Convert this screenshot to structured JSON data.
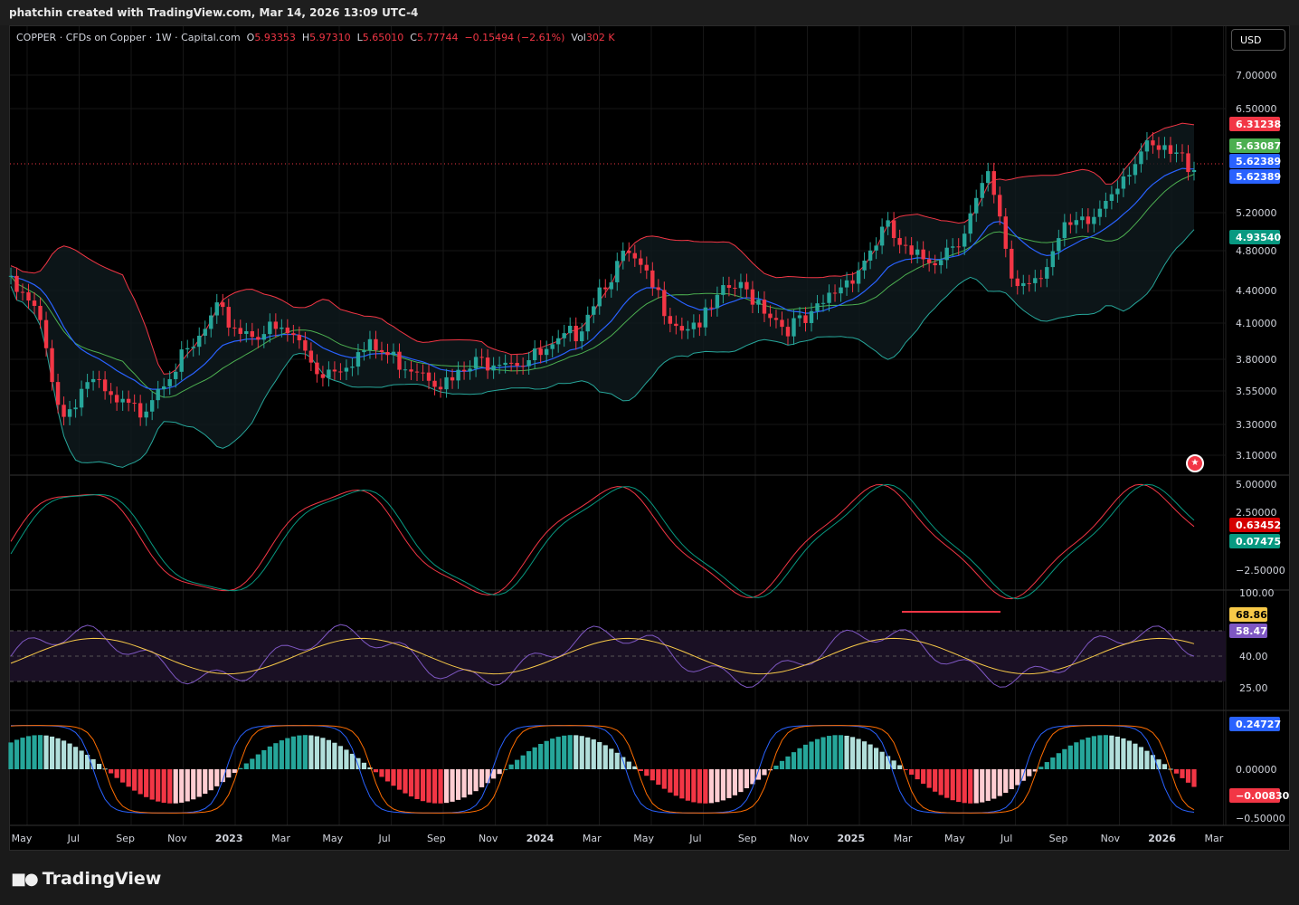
{
  "header": {
    "attribution": "phatchin created with TradingView.com, Mar 14, 2026 13:09 UTC-4"
  },
  "legend": {
    "symbol": "COPPER · CFDs on Copper · 1W · Capital.com",
    "o_label": "O",
    "o": "5.93353",
    "h_label": "H",
    "h": "5.97310",
    "l_label": "L",
    "l": "5.65010",
    "c_label": "C",
    "c": "5.77744",
    "change": "−0.15494 (−2.61%)",
    "vol_label": "Vol",
    "vol": "302 K"
  },
  "currency_button": "USD",
  "colors": {
    "up": "#26a69a",
    "down": "#f23645",
    "bb_upper": "#f23645",
    "bb_lower": "#26a69a",
    "ema": "#2962ff",
    "rsi": "#7e57c2",
    "rsi_ma": "#f7c948",
    "macd_line": "#2962ff",
    "signal_line": "#ff6d00"
  },
  "price_axis": {
    "ticks": [
      "7.00000",
      "6.50000",
      "5.20000",
      "4.80000",
      "4.40000",
      "4.10000",
      "3.80000",
      "3.55000",
      "3.30000",
      "3.10000"
    ]
  },
  "price_badges": [
    {
      "value": "6.31238",
      "color": "#f23645"
    },
    {
      "value": "5.63087",
      "color": "#4caf50"
    },
    {
      "value": "5.62389",
      "color": "#2962ff"
    },
    {
      "value": "5.62389",
      "color": "#2962ff"
    },
    {
      "value": "4.93540",
      "color": "#089981"
    }
  ],
  "osc_axis": {
    "ticks": [
      "5.00000",
      "2.50000",
      "−2.50000"
    ]
  },
  "osc_badges": [
    {
      "value": "0.63452",
      "color": "#d50000"
    },
    {
      "value": "0.07475",
      "color": "#089981"
    }
  ],
  "rsi_axis": {
    "ticks": [
      "100.00",
      "40.00",
      "25.00"
    ]
  },
  "rsi_badges": [
    {
      "value": "68.86",
      "color": "#f7c948"
    },
    {
      "value": "58.47",
      "color": "#7e57c2"
    }
  ],
  "macd_axis": {
    "ticks": [
      "0.00000",
      "−0.50000"
    ]
  },
  "macd_badges": [
    {
      "value": "0.24727",
      "color": "#2962ff"
    },
    {
      "value": "−0.00830",
      "color": "#f23645"
    }
  ],
  "time_axis": [
    "May",
    "Jul",
    "Sep",
    "Nov",
    "2023",
    "Mar",
    "May",
    "Jul",
    "Sep",
    "Nov",
    "2024",
    "Mar",
    "May",
    "Jul",
    "Sep",
    "Nov",
    "2025",
    "Mar",
    "May",
    "Jul",
    "Sep",
    "Nov",
    "2026",
    "Mar"
  ],
  "footer": {
    "brand": "TradingView"
  },
  "chart_data": {
    "type": "candlestick",
    "title": "COPPER · CFDs on Copper · 1W · Capital.com",
    "ylim": [
      2.9,
      7.3
    ],
    "y_scale": "log",
    "close_path": [
      {
        "date": "2022-05",
        "close": 4.45
      },
      {
        "date": "2022-06",
        "close": 4.2
      },
      {
        "date": "2022-07",
        "close": 3.35
      },
      {
        "date": "2022-08",
        "close": 3.65
      },
      {
        "date": "2022-09",
        "close": 3.45
      },
      {
        "date": "2022-10",
        "close": 3.4
      },
      {
        "date": "2022-11",
        "close": 3.7
      },
      {
        "date": "2022-12",
        "close": 3.85
      },
      {
        "date": "2023-01",
        "close": 4.2
      },
      {
        "date": "2023-02",
        "close": 4.05
      },
      {
        "date": "2023-03",
        "close": 4.05
      },
      {
        "date": "2023-04",
        "close": 4.0
      },
      {
        "date": "2023-05",
        "close": 3.7
      },
      {
        "date": "2023-06",
        "close": 3.8
      },
      {
        "date": "2023-07",
        "close": 3.9
      },
      {
        "date": "2023-08",
        "close": 3.8
      },
      {
        "date": "2023-09",
        "close": 3.75
      },
      {
        "date": "2023-10",
        "close": 3.6
      },
      {
        "date": "2023-11",
        "close": 3.75
      },
      {
        "date": "2023-12",
        "close": 3.85
      },
      {
        "date": "2024-01",
        "close": 3.8
      },
      {
        "date": "2024-02",
        "close": 3.85
      },
      {
        "date": "2024-03",
        "close": 4.05
      },
      {
        "date": "2024-04",
        "close": 4.5
      },
      {
        "date": "2024-05",
        "close": 4.75
      },
      {
        "date": "2024-06",
        "close": 4.4
      },
      {
        "date": "2024-07",
        "close": 4.1
      },
      {
        "date": "2024-08",
        "close": 4.15
      },
      {
        "date": "2024-09",
        "close": 4.45
      },
      {
        "date": "2024-10",
        "close": 4.35
      },
      {
        "date": "2024-11",
        "close": 4.1
      },
      {
        "date": "2024-12",
        "close": 4.1
      },
      {
        "date": "2025-01",
        "close": 4.4
      },
      {
        "date": "2025-02",
        "close": 4.65
      },
      {
        "date": "2025-03",
        "close": 5.05
      },
      {
        "date": "2025-04",
        "close": 4.7
      },
      {
        "date": "2025-05",
        "close": 4.75
      },
      {
        "date": "2025-06",
        "close": 5.0
      },
      {
        "date": "2025-07",
        "close": 5.6
      },
      {
        "date": "2025-08",
        "close": 4.45
      },
      {
        "date": "2025-09",
        "close": 4.6
      },
      {
        "date": "2025-10",
        "close": 5.0
      },
      {
        "date": "2025-11",
        "close": 5.1
      },
      {
        "date": "2025-12",
        "close": 5.6
      },
      {
        "date": "2026-01",
        "close": 5.95
      },
      {
        "date": "2026-02",
        "close": 5.9
      },
      {
        "date": "2026-03",
        "close": 5.78
      }
    ]
  }
}
